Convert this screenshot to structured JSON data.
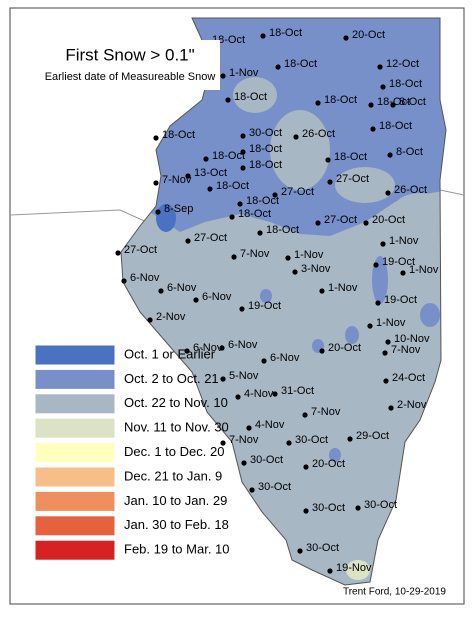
{
  "title": "First Snow > 0.1\"",
  "subtitle": "Earliest date of Measureable Snow",
  "legend": [
    {
      "label": "Oct. 1 or Earlier",
      "color": "#4a72c0"
    },
    {
      "label": "Oct. 2 to Oct. 21",
      "color": "#7890ca"
    },
    {
      "label": "Oct. 22 to Nov. 10",
      "color": "#a7b7c3"
    },
    {
      "label": "Nov. 11 to Nov. 30",
      "color": "#dce3c4"
    },
    {
      "label": "Dec. 1 to Dec. 20",
      "color": "#ffffbe"
    },
    {
      "label": "Dec. 21 to Jan. 9",
      "color": "#f7be8a"
    },
    {
      "label": "Jan. 10 to Jan. 29",
      "color": "#f08f5e"
    },
    {
      "label": "Jan. 30 to Feb. 18",
      "color": "#e6623f"
    },
    {
      "label": "Feb. 19 to Mar. 10",
      "color": "#d62222"
    }
  ],
  "station_labels": [
    "18-Oct",
    "18-Oct",
    "20-Oct",
    "18-Oct",
    "12-Oct",
    "1-Nov",
    "18-Oct",
    "8-Oct",
    "18-Oct",
    "18-Oct",
    "18-Oct",
    "18-Oct",
    "30-Oct",
    "26-Oct",
    "18-Oct",
    "8-Oct",
    "18-Oct",
    "18-Oct",
    "18-Oct",
    "7-Nov",
    "13-Oct",
    "18-Oct",
    "18-Oct",
    "27-Oct",
    "27-Oct",
    "26-Oct",
    "18-Oct",
    "8-Sep",
    "18-Oct",
    "27-Oct",
    "20-Oct",
    "18-Oct",
    "27-Oct",
    "1-Nov",
    "27-Oct",
    "7-Nov",
    "1-Nov",
    "19-Oct",
    "3-Nov",
    "1-Nov",
    "6-Nov",
    "6-Nov",
    "1-Nov",
    "6-Nov",
    "19-Oct",
    "19-Oct",
    "2-Nov",
    "1-Nov",
    "10-Nov",
    "6-Nov",
    "6-Nov",
    "20-Oct",
    "7-Nov",
    "6-Nov",
    "5-Nov",
    "24-Oct",
    "31-Oct",
    "4-Nov",
    "2-Nov",
    "7-Nov",
    "4-Nov",
    "30-Oct",
    "29-Oct",
    "7-Nov",
    "20-Oct",
    "30-Oct",
    "30-Oct",
    "30-Oct",
    "30-Oct",
    "30-Oct",
    "19-Nov"
  ],
  "credit": "Trent Ford, 10-29-2019"
}
